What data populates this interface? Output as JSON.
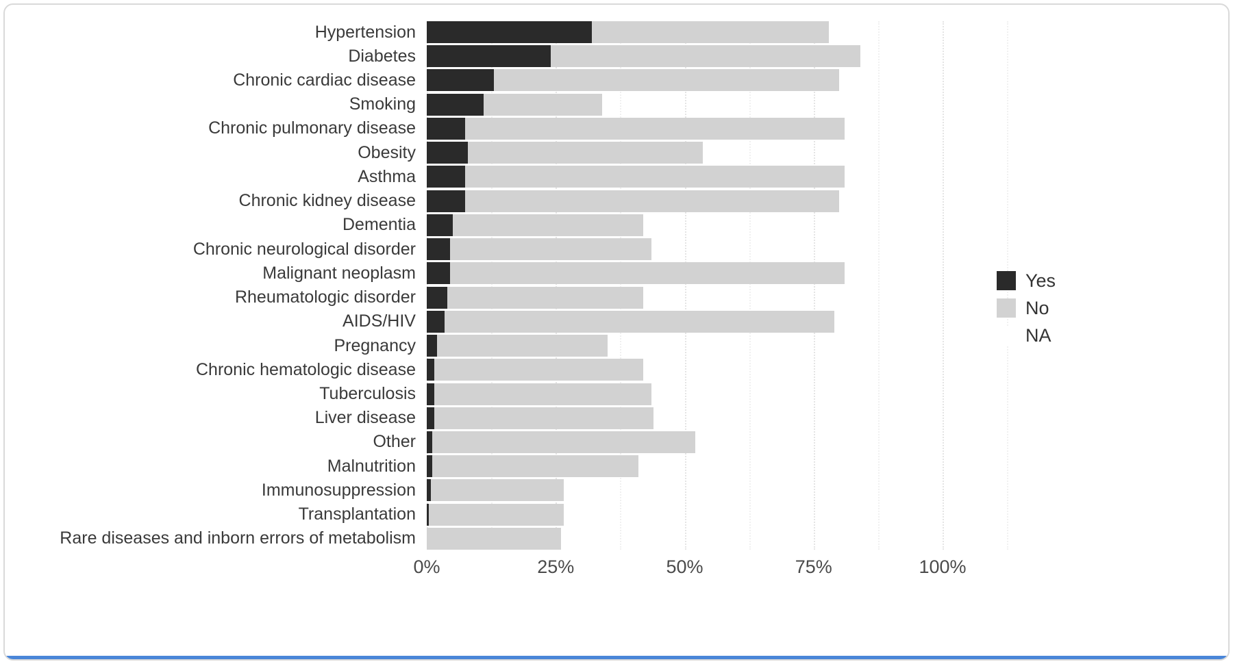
{
  "figure": {
    "background": "#ffffff",
    "border_color": "#d9d9d9",
    "accent_line_color": "#4a86d8"
  },
  "chart_data": {
    "type": "bar",
    "orientation": "horizontal",
    "stacked": true,
    "title": "",
    "xlabel": "",
    "ylabel": "",
    "xlim": [
      0,
      100
    ],
    "grid": "faint dotted vertical gridlines at 12.5% intervals",
    "x_ticks": [
      {
        "label": "0%",
        "value": 0
      },
      {
        "label": "25%",
        "value": 25
      },
      {
        "label": "50%",
        "value": 50
      },
      {
        "label": "75%",
        "value": 75
      },
      {
        "label": "100%",
        "value": 100
      }
    ],
    "legend": {
      "position": "right",
      "entries": [
        {
          "label": "Yes",
          "color": "#2a2a2a"
        },
        {
          "label": "No",
          "color": "#d2d2d2"
        },
        {
          "label": "NA",
          "color": "#ffffff"
        }
      ]
    },
    "categories": [
      "Hypertension",
      "Diabetes",
      "Chronic cardiac disease",
      "Smoking",
      "Chronic pulmonary disease",
      "Obesity",
      "Asthma",
      "Chronic kidney disease",
      "Dementia",
      "Chronic neurological disorder",
      "Malignant neoplasm",
      "Rheumatologic disorder",
      "AIDS/HIV",
      "Pregnancy",
      "Chronic hematologic disease",
      "Tuberculosis",
      "Liver disease",
      "Other",
      "Malnutrition",
      "Immunosuppression",
      "Transplantation",
      "Rare diseases and inborn errors of metabolism"
    ],
    "series": [
      {
        "name": "Yes",
        "color": "#2a2a2a",
        "values": [
          32,
          24,
          13,
          11,
          7.5,
          8,
          7.5,
          7.5,
          5,
          4.5,
          4.5,
          4,
          3.5,
          2,
          1.5,
          1.5,
          1.5,
          1,
          1,
          0.8,
          0.4,
          0
        ]
      },
      {
        "name": "No",
        "color": "#d2d2d2",
        "values": [
          46,
          60,
          67,
          23,
          73.5,
          45.5,
          73.5,
          72.5,
          37,
          39,
          76.5,
          38,
          75.5,
          33,
          40.5,
          42,
          42.5,
          51,
          40,
          25.7,
          26.1,
          26
        ]
      }
    ]
  }
}
